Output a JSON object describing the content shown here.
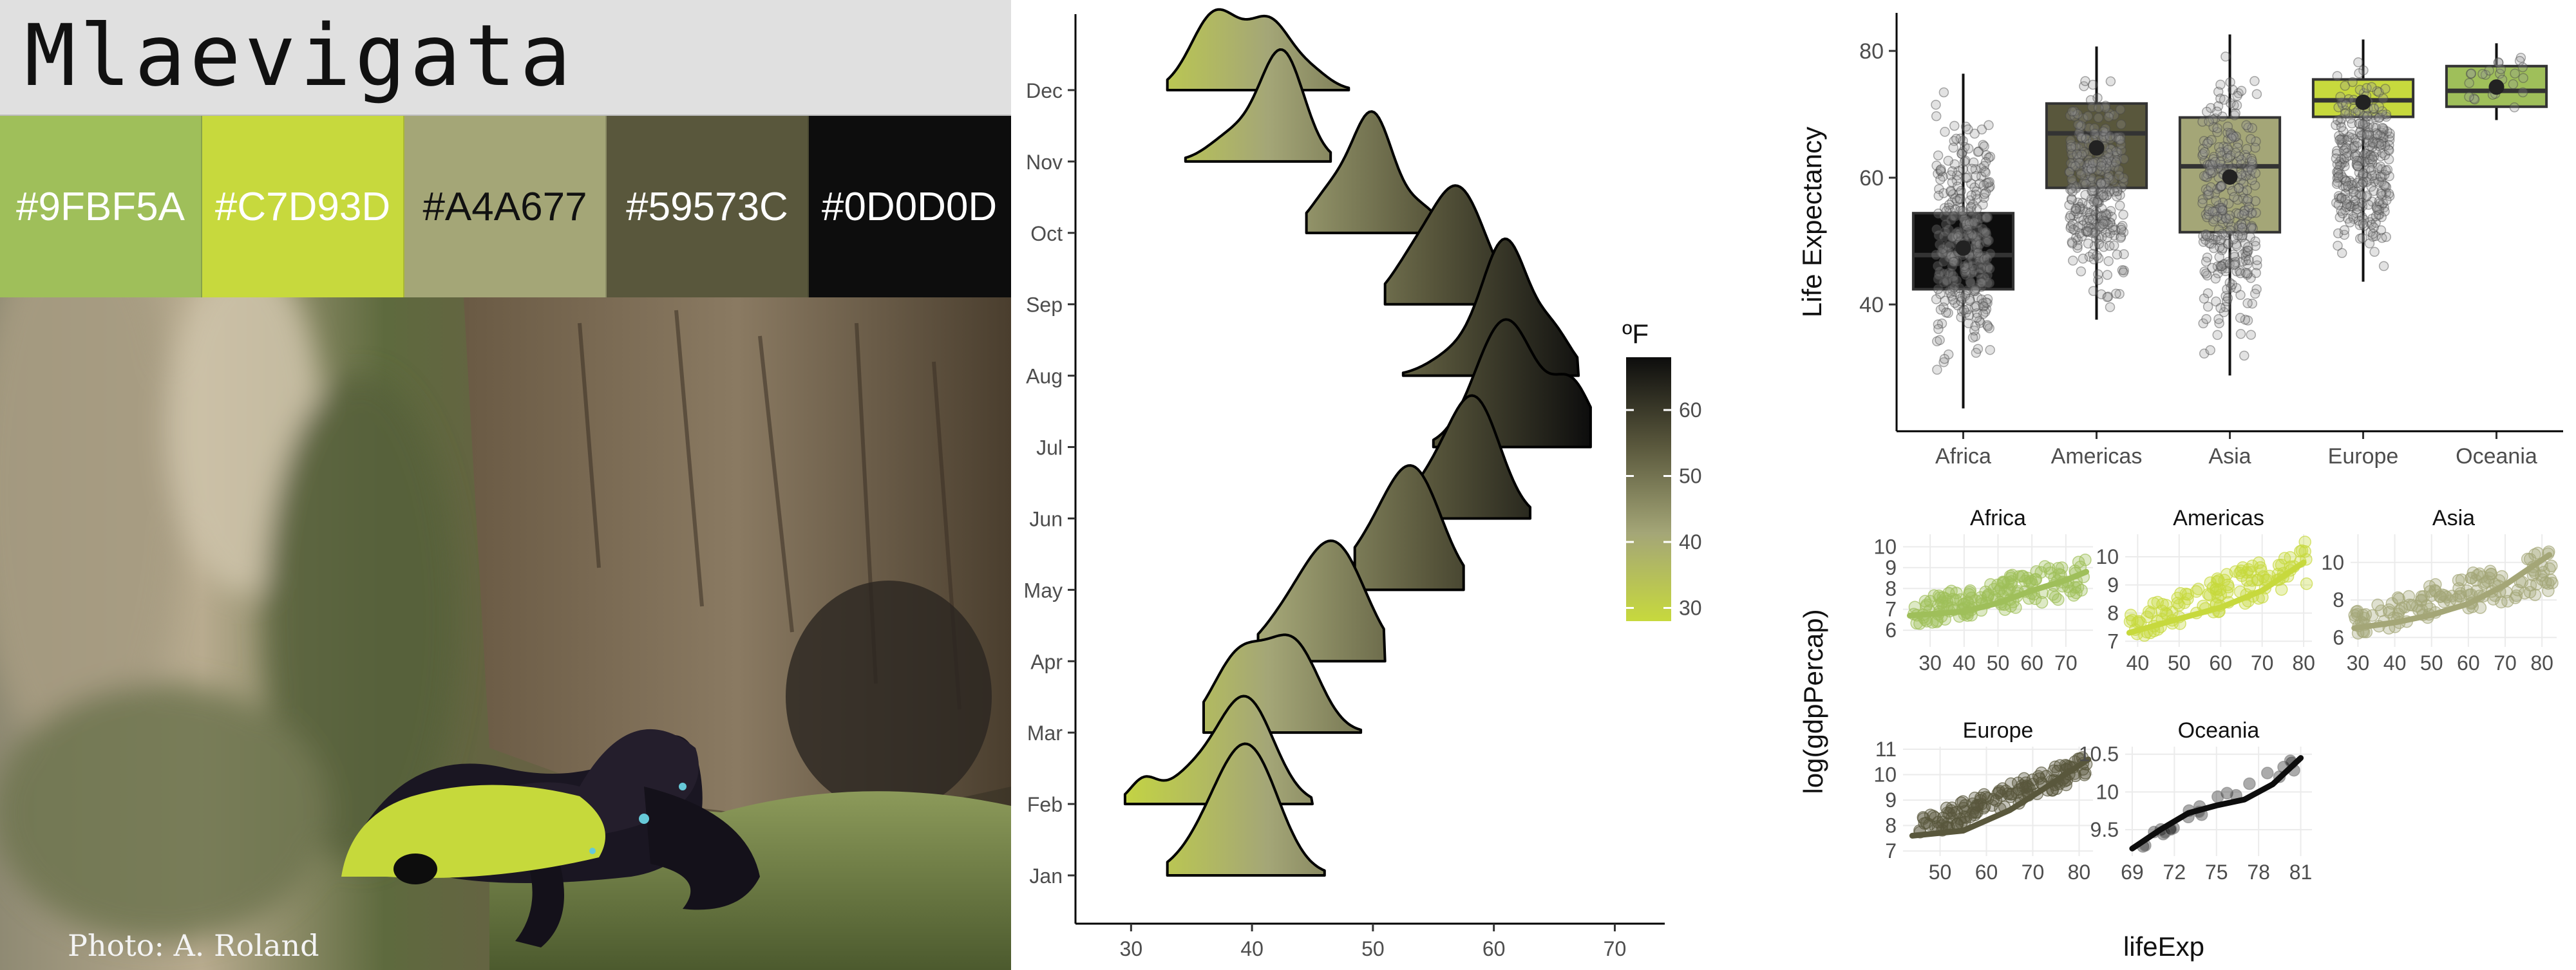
{
  "title": "Mlaevigata",
  "palette": [
    {
      "hex": "#9FBF5A",
      "label": "#9FBF5A",
      "text_color": "#ffffff"
    },
    {
      "hex": "#C7D93D",
      "label": "#C7D93D",
      "text_color": "#ffffff"
    },
    {
      "hex": "#A4A677",
      "label": "#A4A677",
      "text_color": "#111111"
    },
    {
      "hex": "#59573C",
      "label": "#59573C",
      "text_color": "#ffffff"
    },
    {
      "hex": "#0D0D0D",
      "label": "#0D0D0D",
      "text_color": "#ffffff"
    }
  ],
  "photo_credit": "Photo: A. Roland",
  "chart_data": [
    {
      "type": "ridgeline",
      "categories": [
        "Jan",
        "Feb",
        "Mar",
        "Apr",
        "May",
        "Jun",
        "Jul",
        "Aug",
        "Sep",
        "Oct",
        "Nov",
        "Dec"
      ],
      "x_ticks": [
        30,
        40,
        50,
        60,
        70
      ],
      "xlim": [
        27,
        72
      ],
      "legend": {
        "title": "ºF",
        "ticks": [
          30,
          40,
          50,
          60
        ],
        "range": [
          28,
          68
        ],
        "colors": [
          "#C7D93D",
          "#A4A677",
          "#59573C",
          "#0D0D0D"
        ],
        "placement": "right"
      },
      "series": [
        {
          "category": "Jan",
          "peaks": [
            [
              40,
              1.4,
              2.4
            ],
            [
              37,
              0.55,
              2.5
            ]
          ],
          "xmin": 33,
          "xmax": 46
        },
        {
          "category": "Feb",
          "peaks": [
            [
              39.5,
              1.35,
              2.3
            ],
            [
              35,
              0.35,
              2.2
            ],
            [
              31,
              0.28,
              1.1
            ]
          ],
          "xmin": 29.5,
          "xmax": 45
        },
        {
          "category": "Mar",
          "peaks": [
            [
              43.5,
              1.1,
              2.1
            ],
            [
              39,
              1.0,
              2.2
            ]
          ],
          "xmin": 36,
          "xmax": 49
        },
        {
          "category": "Apr",
          "peaks": [
            [
              47,
              1.4,
              2.5
            ],
            [
              43,
              0.5,
              2.5
            ]
          ],
          "xmin": 40.5,
          "xmax": 51
        },
        {
          "category": "May",
          "peaks": [
            [
              53.5,
              1.4,
              2.3
            ],
            [
              50,
              0.5,
              2.5
            ]
          ],
          "xmin": 48.5,
          "xmax": 57.5
        },
        {
          "category": "Jun",
          "peaks": [
            [
              58.5,
              1.45,
              2.1
            ],
            [
              55,
              0.45,
              2.2
            ]
          ],
          "xmin": 54,
          "xmax": 63
        },
        {
          "category": "Jul",
          "peaks": [
            [
              61,
              1.65,
              2.5
            ],
            [
              66.5,
              0.75,
              1.6
            ]
          ],
          "xmin": 55,
          "xmax": 68
        },
        {
          "category": "Aug",
          "peaks": [
            [
              61,
              1.7,
              1.9
            ],
            [
              65,
              0.5,
              1.5
            ],
            [
              57,
              0.3,
              2.2
            ]
          ],
          "xmin": 52.5,
          "xmax": 67
        },
        {
          "category": "Sep",
          "peaks": [
            [
              57,
              1.5,
              2.3
            ],
            [
              53,
              0.4,
              1.8
            ]
          ],
          "xmin": 51,
          "xmax": 62
        },
        {
          "category": "Oct",
          "peaks": [
            [
              50,
              1.5,
              1.7
            ],
            [
              46.5,
              0.5,
              1.7
            ],
            [
              54,
              0.3,
              1.5
            ]
          ],
          "xmin": 44.5,
          "xmax": 57
        },
        {
          "category": "Nov",
          "peaks": [
            [
              42.5,
              1.4,
              1.8
            ],
            [
              38.5,
              0.35,
              2.0
            ]
          ],
          "xmin": 34.5,
          "xmax": 46.5
        },
        {
          "category": "Dec",
          "peaks": [
            [
              37,
              1.0,
              2.0
            ],
            [
              41.5,
              0.85,
              1.8
            ],
            [
              45,
              0.2,
              1.5
            ]
          ],
          "xmin": 33,
          "xmax": 48
        }
      ]
    },
    {
      "type": "box",
      "ylabel": "Life Expectancy",
      "categories": [
        "Africa",
        "Americas",
        "Asia",
        "Europe",
        "Oceania"
      ],
      "y_ticks": [
        40,
        60,
        80
      ],
      "ylim": [
        20,
        86
      ],
      "boxes": [
        {
          "name": "Africa",
          "color": "#0D0D0D",
          "q1": 42.4,
          "median": 47.8,
          "q3": 54.4,
          "lower": 23.6,
          "upper": 76.4,
          "mean": 48.9
        },
        {
          "name": "Americas",
          "color": "#59573C",
          "q1": 58.4,
          "median": 67.0,
          "q3": 71.7,
          "lower": 37.6,
          "upper": 80.7,
          "mean": 64.7
        },
        {
          "name": "Asia",
          "color": "#A4A677",
          "q1": 51.4,
          "median": 61.8,
          "q3": 69.5,
          "lower": 28.8,
          "upper": 82.6,
          "mean": 60.1
        },
        {
          "name": "Europe",
          "color": "#C7D93D",
          "q1": 69.6,
          "median": 72.2,
          "q3": 75.5,
          "lower": 43.6,
          "upper": 81.8,
          "mean": 71.9
        },
        {
          "name": "Oceania",
          "color": "#9FBF5A",
          "q1": 71.2,
          "median": 73.7,
          "q3": 77.6,
          "lower": 69.1,
          "upper": 81.2,
          "mean": 74.3
        }
      ]
    },
    {
      "type": "scatter",
      "xlabel": "lifeExp",
      "ylabel": "log(gdpPercap)",
      "facets": [
        {
          "name": "Africa",
          "color": "#9FBF5A",
          "x_ticks": [
            30,
            40,
            50,
            60,
            70
          ],
          "y_ticks": [
            6,
            7,
            8,
            9,
            10
          ],
          "xlim": [
            22,
            78
          ],
          "ylim": [
            5.2,
            10.6
          ],
          "trend": [
            [
              24,
              6.7
            ],
            [
              40,
              6.9
            ],
            [
              50,
              7.3
            ],
            [
              60,
              7.9
            ],
            [
              70,
              8.4
            ],
            [
              76,
              8.8
            ]
          ],
          "cloud": {
            "xmin": 25,
            "xmax": 76,
            "ylow": [
              6.2,
              7.6
            ],
            "yhigh": [
              7.4,
              9.6
            ],
            "n": 150
          }
        },
        {
          "name": "Americas",
          "color": "#C7D93D",
          "x_ticks": [
            40,
            50,
            60,
            70,
            80
          ],
          "y_ticks": [
            7,
            8,
            9,
            10
          ],
          "xlim": [
            37,
            82
          ],
          "ylim": [
            6.8,
            10.8
          ],
          "trend": [
            [
              38,
              7.3
            ],
            [
              50,
              7.8
            ],
            [
              60,
              8.2
            ],
            [
              70,
              8.8
            ],
            [
              80,
              9.8
            ]
          ],
          "cloud": {
            "xmin": 38,
            "xmax": 81,
            "ylow": [
              7.0,
              9.0
            ],
            "yhigh": [
              8.0,
              10.6
            ],
            "n": 120
          }
        },
        {
          "name": "Asia",
          "color": "#A4A677",
          "x_ticks": [
            30,
            40,
            50,
            60,
            70,
            80
          ],
          "y_ticks": [
            6,
            8,
            10
          ],
          "xlim": [
            28,
            84
          ],
          "ylim": [
            5.5,
            11.5
          ],
          "trend": [
            [
              29,
              6.5
            ],
            [
              40,
              6.8
            ],
            [
              50,
              7.2
            ],
            [
              60,
              7.8
            ],
            [
              70,
              8.8
            ],
            [
              82,
              10.4
            ]
          ],
          "cloud": {
            "xmin": 29,
            "xmax": 83,
            "ylow": [
              6.0,
              8.5
            ],
            "yhigh": [
              7.4,
              10.9
            ],
            "n": 140
          }
        },
        {
          "name": "Europe",
          "color": "#59573C",
          "x_ticks": [
            50,
            60,
            70,
            80
          ],
          "y_ticks": [
            7,
            8,
            9,
            10,
            11
          ],
          "xlim": [
            42,
            83
          ],
          "ylim": [
            6.8,
            11.1
          ],
          "trend": [
            [
              44,
              7.6
            ],
            [
              55,
              7.8
            ],
            [
              65,
              8.6
            ],
            [
              72,
              9.4
            ],
            [
              82,
              10.6
            ]
          ],
          "cloud": {
            "xmin": 44,
            "xmax": 82,
            "ylow": [
              7.4,
              9.8
            ],
            "yhigh": [
              8.2,
              10.8
            ],
            "n": 140
          }
        },
        {
          "name": "Oceania",
          "color": "#0D0D0D",
          "x_ticks": [
            69,
            72,
            75,
            78,
            81
          ],
          "y_ticks": [
            9.5,
            10.0,
            10.5
          ],
          "xlim": [
            68.5,
            81.8
          ],
          "ylim": [
            9.15,
            10.6
          ],
          "trend": [
            [
              69,
              9.25
            ],
            [
              71,
              9.5
            ],
            [
              73,
              9.72
            ],
            [
              75,
              9.82
            ],
            [
              77,
              9.9
            ],
            [
              79,
              10.1
            ],
            [
              81,
              10.45
            ]
          ],
          "cloud": {
            "xmin": 69,
            "xmax": 81,
            "ylow": [
              9.2,
              10.3
            ],
            "yhigh": [
              9.4,
              10.5
            ],
            "n": 24
          }
        }
      ]
    }
  ]
}
